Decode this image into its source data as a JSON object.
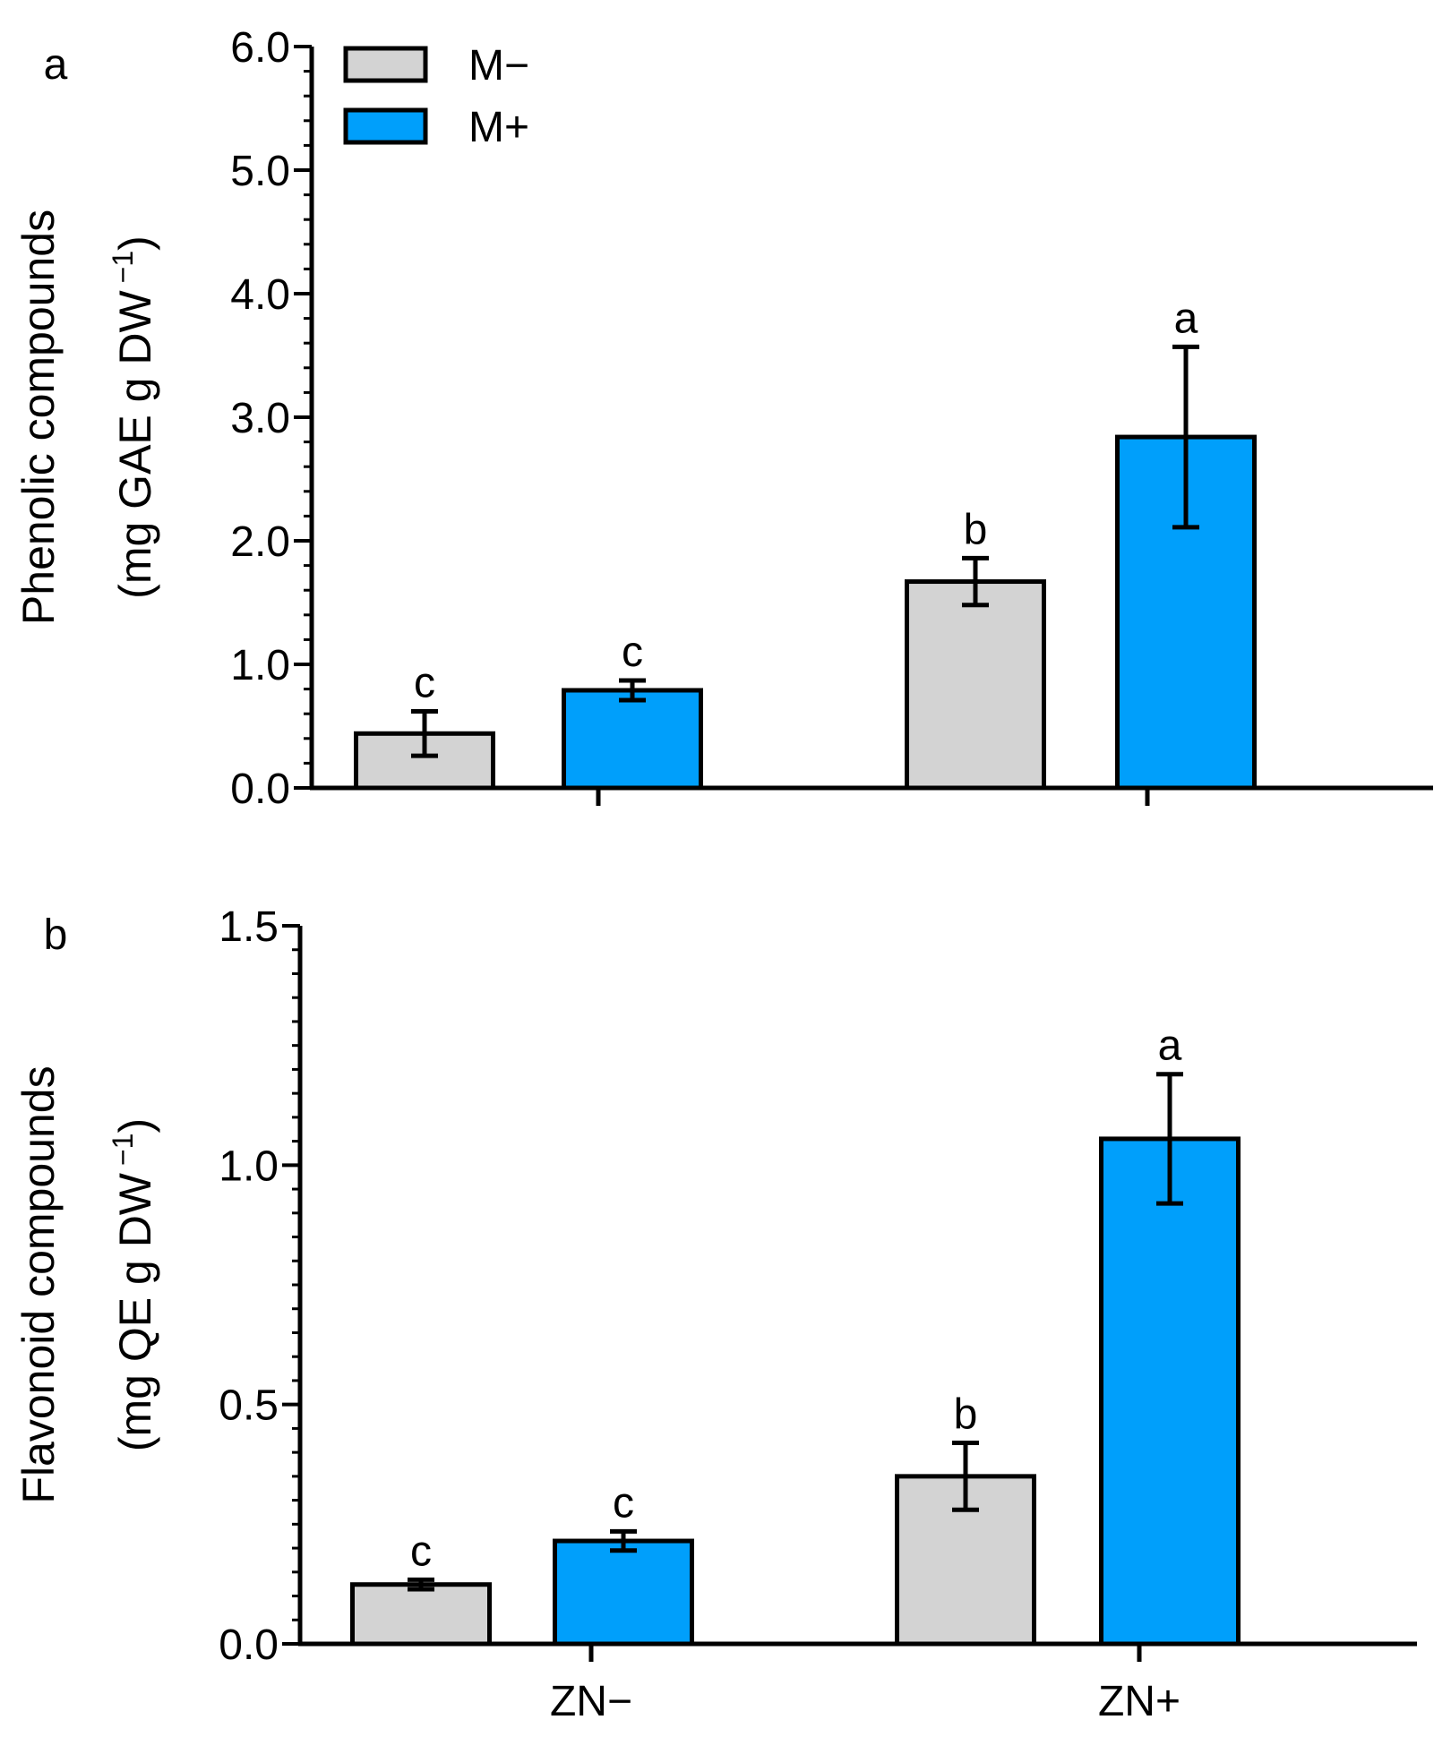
{
  "legend": [
    {
      "label": "M−",
      "color": "#d3d3d3"
    },
    {
      "label": "M+",
      "color": "#009ffb"
    }
  ],
  "colors": {
    "axis": "#000000",
    "bar_edge": "#000000"
  },
  "chart_data": [
    {
      "type": "bar",
      "panel_label": "a",
      "title": "",
      "ylabel_line1": "Phenolic compounds",
      "ylabel_line2": "(mg GAE g DW",
      "ylabel_sup": "−1",
      "ylabel_close": ")",
      "xlabel": "",
      "categories": [
        "ZN−",
        "ZN+"
      ],
      "show_category_labels": false,
      "ylim": [
        0,
        6
      ],
      "yticks": [
        0,
        1,
        2,
        3,
        4,
        5,
        6
      ],
      "ytick_labels": [
        "0.0",
        "1.0",
        "2.0",
        "3.0",
        "4.0",
        "5.0",
        "6.0"
      ],
      "minor_step": 0.2,
      "series": [
        {
          "name": "M−",
          "values": [
            0.44,
            1.67
          ],
          "errors": [
            0.18,
            0.19
          ],
          "letters": [
            "c",
            "b"
          ]
        },
        {
          "name": "M+",
          "values": [
            0.79,
            2.84
          ],
          "errors": [
            0.08,
            0.73
          ],
          "letters": [
            "c",
            "a"
          ]
        }
      ]
    },
    {
      "type": "bar",
      "panel_label": "b",
      "title": "",
      "ylabel_line1": "Flavonoid compounds",
      "ylabel_line2": "(mg QE g DW",
      "ylabel_sup": "−1",
      "ylabel_close": ")",
      "xlabel": "",
      "categories": [
        "ZN−",
        "ZN+"
      ],
      "show_category_labels": true,
      "ylim": [
        0,
        1.5
      ],
      "yticks": [
        0,
        0.5,
        1.0,
        1.5
      ],
      "ytick_labels": [
        "0.0",
        "0.5",
        "1.0",
        "1.5"
      ],
      "minor_step": 0.05,
      "series": [
        {
          "name": "M−",
          "values": [
            0.124,
            0.35
          ],
          "errors": [
            0.01,
            0.07
          ],
          "letters": [
            "c",
            "b"
          ]
        },
        {
          "name": "M+",
          "values": [
            0.215,
            1.055
          ],
          "errors": [
            0.02,
            0.135
          ],
          "letters": [
            "c",
            "a"
          ]
        }
      ]
    }
  ]
}
